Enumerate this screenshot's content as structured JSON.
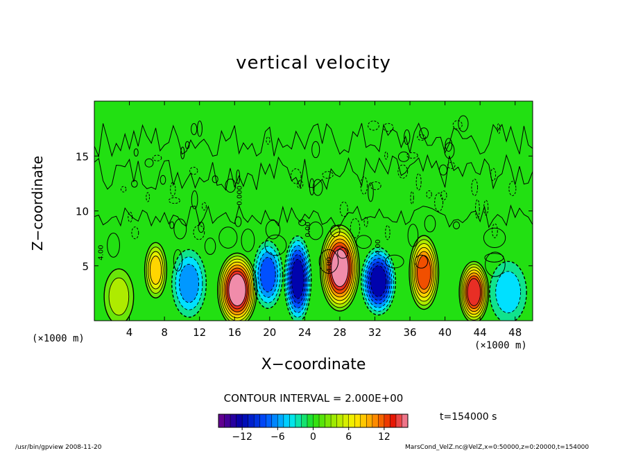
{
  "chart_data": {
    "type": "heatmap",
    "title": "vertical velocity",
    "xlabel": "X−coordinate",
    "ylabel": "Z−coordinate",
    "x_unit_label": "(×1000 m)",
    "xlim": [
      0,
      50
    ],
    "ylim": [
      0,
      20
    ],
    "x_ticks": [
      4,
      8,
      12,
      16,
      20,
      24,
      28,
      32,
      36,
      40,
      44,
      48
    ],
    "y_ticks": [
      5,
      10,
      15
    ],
    "contour_interval_label": "CONTOUR INTERVAL = 2.000E+00",
    "contour_labels": [
      "4.00",
      "4.00",
      "4.00",
      "0.00",
      "0.000"
    ],
    "colorbar": {
      "min": -16,
      "max": 16,
      "ticks": [
        -12,
        -6,
        0,
        6,
        12
      ]
    },
    "cells": [
      {
        "x": 2.8,
        "z": 2.2,
        "value": 4,
        "sx": 1.2,
        "sz": 1.8
      },
      {
        "x": 7.0,
        "z": 4.6,
        "value": 8,
        "sx": 0.9,
        "sz": 1.8
      },
      {
        "x": 10.8,
        "z": 3.4,
        "value": -6,
        "sx": 1.4,
        "sz": 2.2
      },
      {
        "x": 16.3,
        "z": 2.8,
        "value": 16,
        "sx": 1.6,
        "sz": 2.4
      },
      {
        "x": 19.8,
        "z": 4.2,
        "value": -8,
        "sx": 1.2,
        "sz": 2.2
      },
      {
        "x": 23.2,
        "z": 3.8,
        "value": -12,
        "sx": 1.1,
        "sz": 2.8
      },
      {
        "x": 28.0,
        "z": 4.8,
        "value": 16,
        "sx": 1.6,
        "sz": 2.8
      },
      {
        "x": 32.4,
        "z": 3.6,
        "value": -12,
        "sx": 1.4,
        "sz": 2.2
      },
      {
        "x": 37.6,
        "z": 4.4,
        "value": 12,
        "sx": 1.2,
        "sz": 2.4
      },
      {
        "x": 43.3,
        "z": 2.6,
        "value": 14,
        "sx": 1.2,
        "sz": 2.0
      },
      {
        "x": 47.2,
        "z": 2.6,
        "value": -4,
        "sx": 1.5,
        "sz": 2.0
      }
    ],
    "colors": {
      "background": "#22e012",
      "frame": "#000000"
    }
  },
  "time_label": "t=154000  s",
  "footer_left": "/usr/bin/gpview   2008-11-20",
  "footer_right": "MarsCond_VelZ.nc@VelZ,x=0:50000,z=0:20000,t=154000"
}
